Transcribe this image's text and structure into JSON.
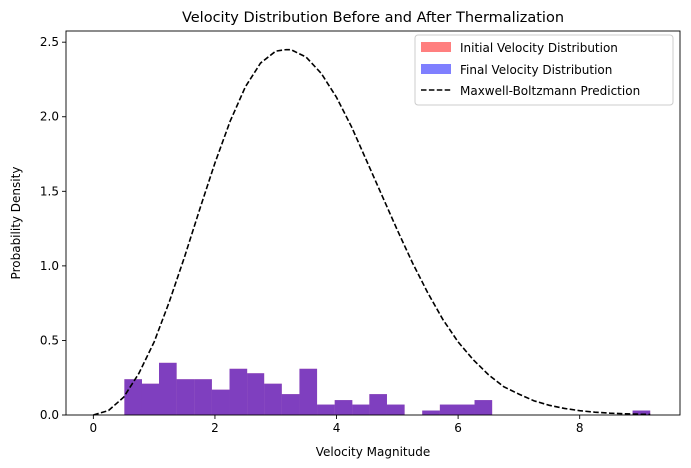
{
  "chart_data": {
    "type": "bar",
    "title": "Velocity Distribution Before and After Thermalization",
    "xlabel": "Velocity Magnitude",
    "ylabel": "Probability Density",
    "xlim": [
      -0.45,
      9.65
    ],
    "ylim": [
      0,
      2.575
    ],
    "x_ticks": [
      0,
      2,
      4,
      6,
      8
    ],
    "y_ticks": [
      0.0,
      0.5,
      1.0,
      1.5,
      2.0,
      2.5
    ],
    "x_tick_labels": [
      "0",
      "2",
      "4",
      "6",
      "8"
    ],
    "y_tick_labels": [
      "0.0",
      "0.5",
      "1.0",
      "1.5",
      "2.0",
      "2.5"
    ],
    "grid": false,
    "legend_position": "top-right",
    "series": [
      {
        "name": "Initial Velocity Distribution",
        "kind": "histogram",
        "color": "#ff0000",
        "alpha": 0.5,
        "bins": [
          {
            "x0": 0.51,
            "x1": 0.8,
            "value": 0.24
          },
          {
            "x0": 0.8,
            "x1": 1.08,
            "value": 0.21
          },
          {
            "x0": 1.08,
            "x1": 1.37,
            "value": 0.35
          },
          {
            "x0": 1.37,
            "x1": 1.66,
            "value": 0.24
          },
          {
            "x0": 1.66,
            "x1": 1.95,
            "value": 0.24
          },
          {
            "x0": 1.95,
            "x1": 2.24,
            "value": 0.17
          },
          {
            "x0": 2.24,
            "x1": 2.53,
            "value": 0.31
          },
          {
            "x0": 2.53,
            "x1": 2.81,
            "value": 0.28
          },
          {
            "x0": 2.81,
            "x1": 3.1,
            "value": 0.21
          },
          {
            "x0": 3.1,
            "x1": 3.39,
            "value": 0.14
          },
          {
            "x0": 3.39,
            "x1": 3.68,
            "value": 0.31
          },
          {
            "x0": 3.68,
            "x1": 3.97,
            "value": 0.07
          },
          {
            "x0": 3.97,
            "x1": 4.26,
            "value": 0.1
          },
          {
            "x0": 4.26,
            "x1": 4.54,
            "value": 0.07
          },
          {
            "x0": 4.54,
            "x1": 4.83,
            "value": 0.14
          },
          {
            "x0": 4.83,
            "x1": 5.12,
            "value": 0.07
          },
          {
            "x0": 5.41,
            "x1": 5.7,
            "value": 0.03
          },
          {
            "x0": 5.7,
            "x1": 5.99,
            "value": 0.07
          },
          {
            "x0": 5.99,
            "x1": 6.27,
            "value": 0.07
          },
          {
            "x0": 6.27,
            "x1": 6.56,
            "value": 0.1
          },
          {
            "x0": 8.87,
            "x1": 9.16,
            "value": 0.03
          }
        ]
      },
      {
        "name": "Final Velocity Distribution",
        "kind": "histogram",
        "color": "#0000ff",
        "alpha": 0.5,
        "bins": [
          {
            "x0": 0.51,
            "x1": 0.8,
            "value": 0.24
          },
          {
            "x0": 0.8,
            "x1": 1.08,
            "value": 0.21
          },
          {
            "x0": 1.08,
            "x1": 1.37,
            "value": 0.35
          },
          {
            "x0": 1.37,
            "x1": 1.66,
            "value": 0.24
          },
          {
            "x0": 1.66,
            "x1": 1.95,
            "value": 0.24
          },
          {
            "x0": 1.95,
            "x1": 2.24,
            "value": 0.17
          },
          {
            "x0": 2.24,
            "x1": 2.53,
            "value": 0.31
          },
          {
            "x0": 2.53,
            "x1": 2.81,
            "value": 0.28
          },
          {
            "x0": 2.81,
            "x1": 3.1,
            "value": 0.21
          },
          {
            "x0": 3.1,
            "x1": 3.39,
            "value": 0.14
          },
          {
            "x0": 3.39,
            "x1": 3.68,
            "value": 0.31
          },
          {
            "x0": 3.68,
            "x1": 3.97,
            "value": 0.07
          },
          {
            "x0": 3.97,
            "x1": 4.26,
            "value": 0.1
          },
          {
            "x0": 4.26,
            "x1": 4.54,
            "value": 0.07
          },
          {
            "x0": 4.54,
            "x1": 4.83,
            "value": 0.14
          },
          {
            "x0": 4.83,
            "x1": 5.12,
            "value": 0.07
          },
          {
            "x0": 5.41,
            "x1": 5.7,
            "value": 0.03
          },
          {
            "x0": 5.7,
            "x1": 5.99,
            "value": 0.07
          },
          {
            "x0": 5.99,
            "x1": 6.27,
            "value": 0.07
          },
          {
            "x0": 6.27,
            "x1": 6.56,
            "value": 0.1
          },
          {
            "x0": 8.87,
            "x1": 9.16,
            "value": 0.03
          }
        ]
      },
      {
        "name": "Maxwell-Boltzmann Prediction",
        "kind": "line",
        "color": "#000000",
        "line_style": "dashed",
        "x": [
          0,
          0.25,
          0.5,
          0.75,
          1.0,
          1.25,
          1.5,
          1.75,
          2.0,
          2.25,
          2.5,
          2.75,
          3.0,
          3.17,
          3.25,
          3.5,
          3.75,
          4.0,
          4.25,
          4.5,
          4.75,
          5.0,
          5.25,
          5.5,
          5.75,
          6.0,
          6.25,
          6.5,
          6.75,
          7.0,
          7.25,
          7.5,
          7.75,
          8.0,
          8.25,
          8.5,
          8.75,
          9.0,
          9.16
        ],
        "y": [
          0.0,
          0.03,
          0.12,
          0.28,
          0.49,
          0.76,
          1.06,
          1.38,
          1.69,
          1.97,
          2.2,
          2.36,
          2.44,
          2.45,
          2.45,
          2.4,
          2.29,
          2.13,
          1.93,
          1.7,
          1.47,
          1.24,
          1.02,
          0.82,
          0.64,
          0.49,
          0.37,
          0.27,
          0.19,
          0.14,
          0.095,
          0.065,
          0.044,
          0.029,
          0.019,
          0.012,
          0.008,
          0.005,
          0.004
        ]
      }
    ]
  }
}
